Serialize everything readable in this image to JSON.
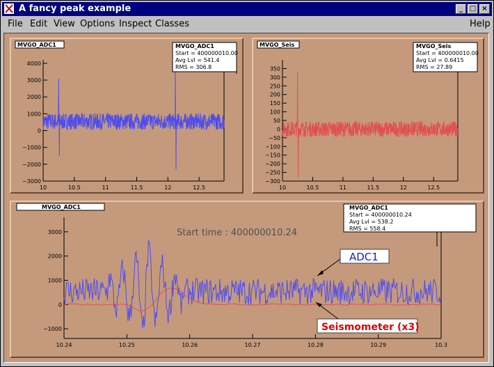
{
  "window": {
    "title": "A fancy peak example",
    "minimize": "_",
    "maximize": "□",
    "close": "×"
  },
  "menu": {
    "file": "File",
    "edit": "Edit",
    "view": "View",
    "options": "Options",
    "inspect": "Inspect",
    "classes": "Classes",
    "help": "Help"
  },
  "chart_data": [
    {
      "type": "line",
      "title": "MVGO_ADC1",
      "xlim": [
        10,
        12.9
      ],
      "ylim": [
        -3000,
        4200
      ],
      "x_ticks": [
        "10",
        "10.5",
        "11",
        "11.5",
        "12",
        "12.5"
      ],
      "y_ticks": [
        "4000",
        "3000",
        "2000",
        "1000",
        "0",
        "−1000",
        "−2000",
        "−3000"
      ],
      "series": [
        {
          "color": "#4c4cf0",
          "baseline": 541.4,
          "noise": 306.8,
          "spikes": [
            {
              "x": 10.25,
              "value": 3100
            },
            {
              "x": 10.26,
              "value": -1500
            },
            {
              "x": 12.12,
              "value": 3700
            },
            {
              "x": 12.13,
              "value": -2300
            }
          ]
        }
      ],
      "stats": {
        "name": "MVGO_ADC1",
        "start": "Start = 400000010.00",
        "avg": "Avg Lvl =  541.4",
        "rms": "RMS    =  306.8"
      }
    },
    {
      "type": "line",
      "title": "MVGO_Seis",
      "xlim": [
        10,
        12.9
      ],
      "ylim": [
        -300,
        400
      ],
      "x_ticks": [
        "10",
        "10.5",
        "11",
        "11.5",
        "12",
        "12.5"
      ],
      "y_ticks": [
        "350",
        "300",
        "250",
        "200",
        "150",
        "100",
        "50",
        "0",
        "−50",
        "−100",
        "−150",
        "−200",
        "−250",
        "−300"
      ],
      "series": [
        {
          "color": "#e05050",
          "baseline": 0.6415,
          "noise": 27.89,
          "spikes": [
            {
              "x": 10.25,
              "value": 330
            },
            {
              "x": 10.26,
              "value": -280
            }
          ]
        }
      ],
      "stats": {
        "name": "MVGO_Seis",
        "start": "Start = 400000010.00",
        "avg": "Avg Lvl = 0.6415",
        "rms": "RMS    =  27.89"
      }
    },
    {
      "type": "line",
      "title": "MVGO_ADC1",
      "subtitle": "Start time : 400000010.24",
      "xlim": [
        10.24,
        10.3
      ],
      "ylim": [
        -1400,
        3600
      ],
      "x_ticks": [
        "10.24",
        "10.25",
        "10.26",
        "10.27",
        "10.28",
        "10.29",
        "10.3"
      ],
      "y_ticks": [
        "3000",
        "2000",
        "1000",
        "0",
        "−1000"
      ],
      "series": [
        {
          "name": "ADC1",
          "color": "#4c4cf0",
          "baseline": 538.2,
          "noise": 558.4
        },
        {
          "name": "Seismometer (x3)",
          "color": "#e05050",
          "baseline": 0,
          "noise": 30
        }
      ],
      "stats": {
        "name": "MVGO_ADC1",
        "start": "Start = 400000010.24",
        "avg": "Avg Lvl =  538.2",
        "rms": "RMS    =  558.4"
      },
      "legend": {
        "adc1": "ADC1",
        "seis": "Seismometer (x3)"
      }
    }
  ]
}
